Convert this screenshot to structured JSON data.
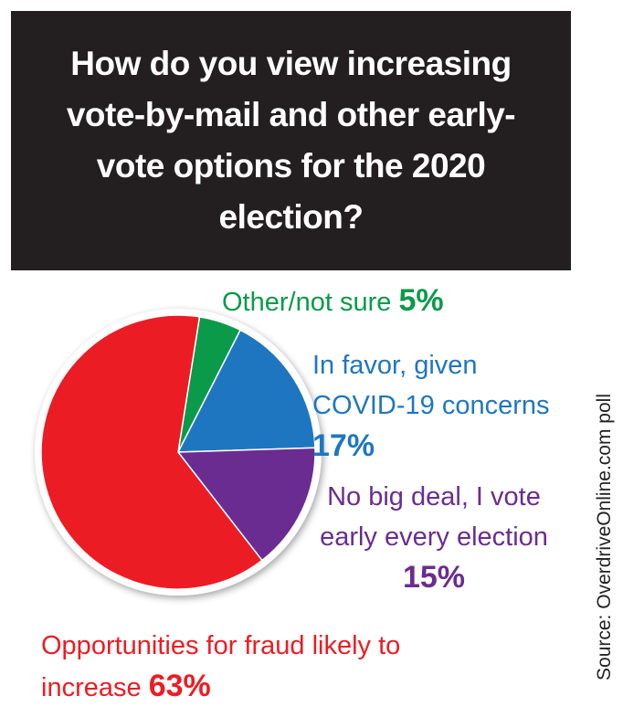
{
  "chart_data": {
    "type": "pie",
    "title": "How do you view increasing vote-by-mail and other early-vote options for the 2020 election?",
    "categories": [
      "Other/not sure",
      "In favor, given COVID-19 concerns",
      "No big deal, I vote early every election",
      "Opportunities for fraud likely to increase"
    ],
    "values": [
      5,
      17,
      15,
      63
    ],
    "value_labels": [
      "5%",
      "17%",
      "15%",
      "63%"
    ],
    "colors": [
      "#0b9a4a",
      "#1f76c0",
      "#6a2c91",
      "#ec1c24"
    ],
    "source": "Source: OverdriveOnline.com poll"
  }
}
